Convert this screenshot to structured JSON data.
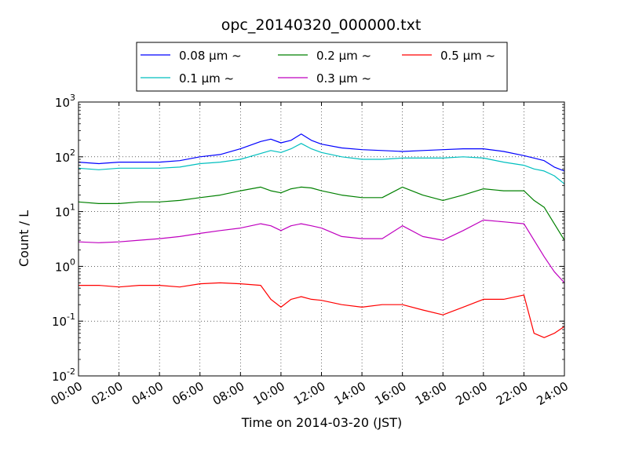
{
  "chart_data": {
    "type": "line",
    "title": "opc_20140320_000000.txt",
    "xlabel": "Time on 2014-03-20 (JST)",
    "ylabel": "Count / L",
    "xlim": [
      0,
      24
    ],
    "ylim": [
      0.01,
      1000
    ],
    "yscale": "log",
    "grid": true,
    "legend_position": "top-center",
    "x_tick_labels": [
      "00:00",
      "02:00",
      "04:00",
      "06:00",
      "08:00",
      "10:00",
      "12:00",
      "14:00",
      "16:00",
      "18:00",
      "20:00",
      "22:00",
      "24:00"
    ],
    "y_tick_labels": [
      {
        "value": 0.01,
        "base": "10",
        "exp": "-2"
      },
      {
        "value": 0.1,
        "base": "10",
        "exp": "-1"
      },
      {
        "value": 1,
        "base": "10",
        "exp": "0"
      },
      {
        "value": 10,
        "base": "10",
        "exp": "1"
      },
      {
        "value": 100,
        "base": "10",
        "exp": "2"
      },
      {
        "value": 1000,
        "base": "10",
        "exp": "3"
      }
    ],
    "series": [
      {
        "name": "0.08 μm ~",
        "color": "#0000ff",
        "x": [
          0,
          1,
          2,
          3,
          4,
          5,
          6,
          7,
          8,
          9,
          9.5,
          10,
          10.5,
          11,
          11.5,
          12,
          13,
          14,
          15,
          16,
          17,
          18,
          19,
          20,
          21,
          22,
          22.5,
          23,
          23.5,
          24
        ],
        "y": [
          80,
          75,
          80,
          80,
          80,
          85,
          100,
          110,
          140,
          190,
          210,
          180,
          200,
          260,
          200,
          170,
          145,
          135,
          130,
          125,
          130,
          135,
          140,
          140,
          125,
          105,
          95,
          85,
          65,
          55
        ]
      },
      {
        "name": "0.1 μm ~",
        "color": "#00bfbf",
        "x": [
          0,
          1,
          2,
          3,
          4,
          5,
          6,
          7,
          8,
          9,
          9.5,
          10,
          10.5,
          11,
          11.5,
          12,
          13,
          14,
          15,
          16,
          17,
          18,
          19,
          20,
          21,
          22,
          22.5,
          23,
          23.5,
          24
        ],
        "y": [
          62,
          58,
          62,
          62,
          62,
          65,
          75,
          80,
          90,
          115,
          130,
          120,
          140,
          175,
          140,
          120,
          100,
          90,
          90,
          95,
          95,
          95,
          100,
          95,
          80,
          70,
          60,
          55,
          45,
          32
        ]
      },
      {
        "name": "0.2 μm ~",
        "color": "#008000",
        "x": [
          0,
          1,
          2,
          3,
          4,
          5,
          6,
          7,
          8,
          9,
          9.5,
          10,
          10.5,
          11,
          11.5,
          12,
          13,
          14,
          15,
          16,
          17,
          18,
          19,
          20,
          21,
          22,
          22.5,
          23,
          23.5,
          24
        ],
        "y": [
          15,
          14,
          14,
          15,
          15,
          16,
          18,
          20,
          24,
          28,
          24,
          22,
          26,
          28,
          27,
          24,
          20,
          18,
          18,
          28,
          20,
          16,
          20,
          26,
          24,
          24,
          16,
          12,
          6,
          3
        ]
      },
      {
        "name": "0.3 μm ~",
        "color": "#bf00bf",
        "x": [
          0,
          1,
          2,
          3,
          4,
          5,
          6,
          7,
          8,
          9,
          9.5,
          10,
          10.5,
          11,
          11.5,
          12,
          13,
          14,
          15,
          16,
          17,
          18,
          19,
          20,
          21,
          22,
          22.5,
          23,
          23.5,
          24
        ],
        "y": [
          2.8,
          2.7,
          2.8,
          3,
          3.2,
          3.5,
          4,
          4.5,
          5,
          6,
          5.5,
          4.5,
          5.5,
          6,
          5.5,
          5,
          3.5,
          3.2,
          3.2,
          5.5,
          3.5,
          3,
          4.5,
          7,
          6.5,
          6,
          3,
          1.5,
          0.8,
          0.5
        ]
      },
      {
        "name": "0.5 μm ~",
        "color": "#ff0000",
        "x": [
          0,
          1,
          2,
          3,
          4,
          5,
          6,
          7,
          8,
          9,
          9.5,
          10,
          10.5,
          11,
          11.5,
          12,
          13,
          14,
          15,
          16,
          17,
          18,
          19,
          20,
          21,
          22,
          22.5,
          23,
          23.5,
          24
        ],
        "y": [
          0.45,
          0.45,
          0.42,
          0.45,
          0.45,
          0.42,
          0.48,
          0.5,
          0.48,
          0.45,
          0.25,
          0.18,
          0.25,
          0.28,
          0.25,
          0.24,
          0.2,
          0.18,
          0.2,
          0.2,
          0.16,
          0.13,
          0.18,
          0.25,
          0.25,
          0.3,
          0.06,
          0.05,
          0.06,
          0.08
        ]
      }
    ]
  }
}
